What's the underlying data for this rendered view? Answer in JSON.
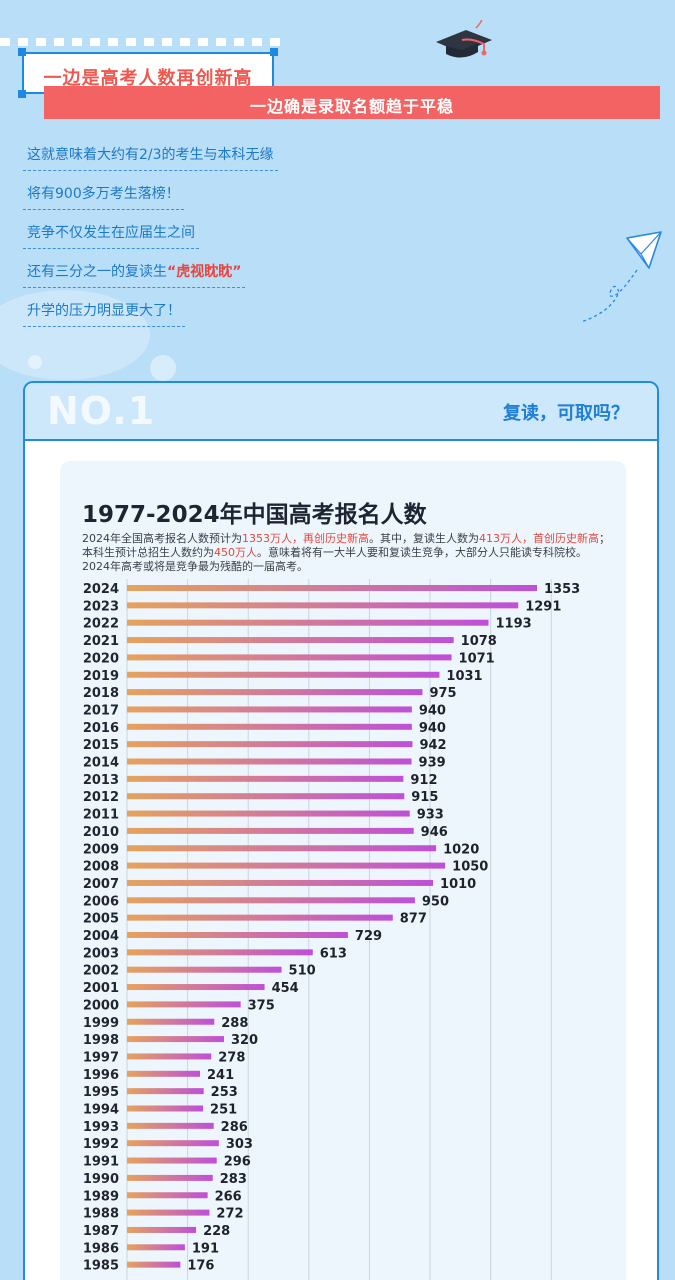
{
  "header": {
    "title_main": "一边是高考人数再创新高",
    "title_sub": "一边确是录取名额趋于平稳"
  },
  "bullets": [
    {
      "text": "这就意味着大约有2/3的考生与本科无缘",
      "highlight": ""
    },
    {
      "text": "将有900多万考生落榜！",
      "highlight": ""
    },
    {
      "text": "竞争不仅发生在应届生之间",
      "highlight": ""
    },
    {
      "text": "还有三分之一的复读生",
      "highlight": "“虎视眈眈”"
    },
    {
      "text": "升学的压力明显更大了！",
      "highlight": ""
    }
  ],
  "card": {
    "badge": "NO.1",
    "title": "复读，可取吗？"
  },
  "chart_desc": {
    "part1": "2024年全国高考报名人数预计为",
    "hl1": "1353万人，再创历史新高",
    "part2": "。其中，复读生人数为",
    "hl2": "413万人，首创历史新高",
    "part3": "；本科生预计总招生人数约为",
    "hl3": "450万人",
    "part4": "。意味着将有一大半人要和复读生竞争，大部分人只能读专科院校。2024年高考或将是竞争最为残酷的一届高考。"
  },
  "colors": {
    "bar_start": "#e5a35c",
    "bar_end": "#bf4fd8",
    "accent_red": "#f46364",
    "accent_blue": "#1f8ae8"
  },
  "chart_data": {
    "type": "bar",
    "orientation": "horizontal",
    "title": "1977-2024年中国高考报名人数",
    "categories": [
      "2024",
      "2023",
      "2022",
      "2021",
      "2020",
      "2019",
      "2018",
      "2017",
      "2016",
      "2015",
      "2014",
      "2013",
      "2012",
      "2011",
      "2010",
      "2009",
      "2008",
      "2007",
      "2006",
      "2005",
      "2004",
      "2003",
      "2002",
      "2001",
      "2000",
      "1999",
      "1998",
      "1997",
      "1996",
      "1995",
      "1994",
      "1993",
      "1992",
      "1991",
      "1990",
      "1989",
      "1988",
      "1987",
      "1986",
      "1985"
    ],
    "values": [
      1353,
      1291,
      1193,
      1078,
      1071,
      1031,
      975,
      940,
      940,
      942,
      939,
      912,
      915,
      933,
      946,
      1020,
      1050,
      1010,
      950,
      877,
      729,
      613,
      510,
      454,
      375,
      288,
      320,
      278,
      241,
      253,
      251,
      286,
      303,
      296,
      283,
      266,
      272,
      228,
      191,
      176
    ],
    "xlim": [
      0,
      1500
    ],
    "grid": true,
    "legend": "none"
  }
}
